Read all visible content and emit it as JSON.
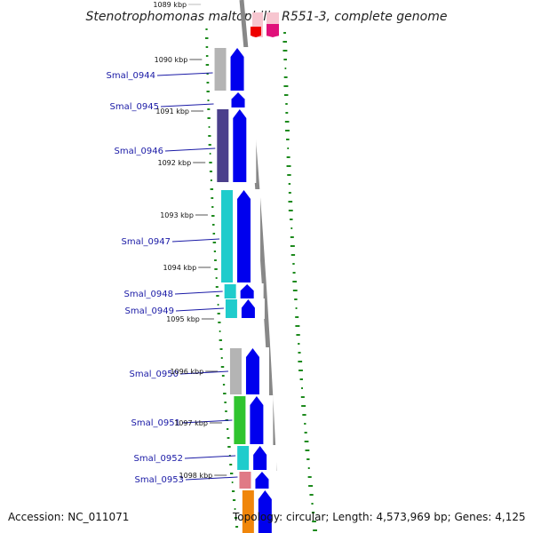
{
  "title": "Stenotrophomonas maltophilia R551-3, complete genome",
  "accession": "Accession: NC_011071",
  "topology": "Topology: circular; Length: 4,573,969 bp; Genes: 4,125",
  "kbp_marks": [
    {
      "label": "1089 kbp",
      "faded": true
    },
    {
      "label": "1090 kbp"
    },
    {
      "label": "1091 kbp"
    },
    {
      "label": "1092 kbp"
    },
    {
      "label": "1093 kbp"
    },
    {
      "label": "1094 kbp"
    },
    {
      "label": "1095 kbp"
    },
    {
      "label": "1096 kbp"
    },
    {
      "label": "1097 kbp"
    },
    {
      "label": "1098 kbp"
    }
  ],
  "genes": [
    {
      "label": "Smal_0944",
      "cog_color": "#b4b4b4"
    },
    {
      "label": "Smal_0945",
      "cog_color": ""
    },
    {
      "label": "Smal_0946",
      "cog_color": "#4b3f8c"
    },
    {
      "label": "Smal_0947",
      "cog_color": "#1fcccc"
    },
    {
      "label": "Smal_0948",
      "cog_color": "#1fcccc"
    },
    {
      "label": "Smal_0949",
      "cog_color": "#1fcccc"
    },
    {
      "label": "Smal_0950",
      "cog_color": "#b4b4b4"
    },
    {
      "label": "Smal_0951",
      "cog_color": "#2fc42f"
    },
    {
      "label": "Smal_0952",
      "cog_color": "#1fcccc"
    },
    {
      "label": "Smal_0953",
      "cog_color": "#e07a86"
    }
  ],
  "colors": {
    "cds": "#0000ee",
    "backbone": "#888888",
    "gc_skew": "#1d8a1d",
    "label": "#1a1aa6"
  }
}
